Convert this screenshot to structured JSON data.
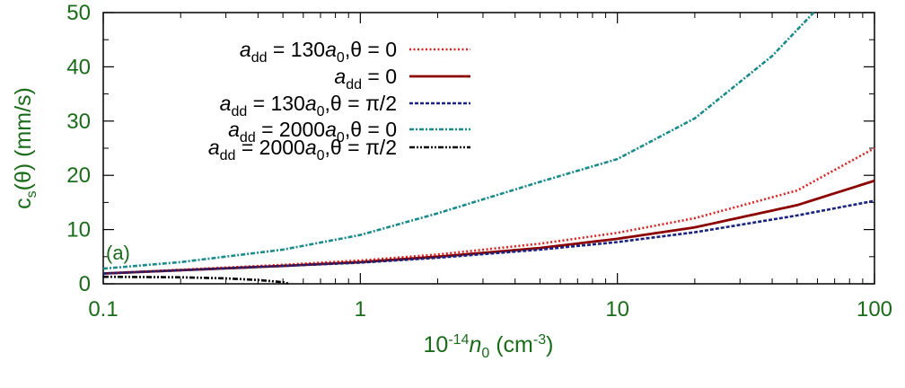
{
  "chart_data": {
    "type": "line",
    "title": "",
    "panel_label": "(a)",
    "xscale": "log",
    "xlim": [
      0.1,
      100
    ],
    "ylim": [
      0,
      50
    ],
    "xticks": [
      0.1,
      1,
      10,
      100
    ],
    "xtick_labels": [
      "0.1",
      "1",
      "10",
      "100"
    ],
    "yticks": [
      0,
      10,
      20,
      30,
      40,
      50
    ],
    "ytick_labels": [
      "0",
      "10",
      "20",
      "30",
      "40",
      "50"
    ],
    "xlabel": {
      "prefix": "10",
      "exp": "-14",
      "var": "n",
      "sub": "0",
      "unit": " (cm",
      "unit_exp": "-3",
      "close": ")"
    },
    "ylabel": {
      "main": "c",
      "sub": "s",
      "rest": "(θ) (mm/s)"
    },
    "axis_color": "#1a6b1a",
    "legend_position": "top-left",
    "series": [
      {
        "name": "a_dd = 130a_0, θ = 0",
        "label_parts": [
          "a",
          "dd",
          " = 130",
          "a",
          "0",
          ",θ = 0"
        ],
        "color": "#dd2222",
        "dash": "dotted",
        "x": [
          0.1,
          0.2,
          0.5,
          1,
          2,
          5,
          10,
          20,
          50,
          100
        ],
        "y": [
          1.9,
          2.6,
          3.5,
          4.3,
          5.4,
          7.4,
          9.4,
          12.1,
          17.2,
          25.0
        ]
      },
      {
        "name": "a_dd = 0",
        "label_parts": [
          "a",
          "dd",
          " = 0",
          "",
          "",
          ""
        ],
        "color": "#8b0000",
        "dash": "solid",
        "x": [
          0.1,
          0.2,
          0.5,
          1,
          2,
          5,
          10,
          20,
          50,
          100
        ],
        "y": [
          1.9,
          2.5,
          3.3,
          4.0,
          5.0,
          6.6,
          8.3,
          10.4,
          14.5,
          19.0
        ]
      },
      {
        "name": "a_dd = 130a_0, θ = π/2",
        "label_parts": [
          "a",
          "dd",
          " = 130",
          "a",
          "0",
          ",θ = π/2"
        ],
        "color": "#1a237e",
        "dash": "dashed",
        "x": [
          0.1,
          0.2,
          0.5,
          1,
          2,
          5,
          10,
          20,
          50,
          100
        ],
        "y": [
          1.9,
          2.5,
          3.3,
          3.9,
          4.8,
          6.3,
          7.7,
          9.5,
          12.6,
          15.3
        ]
      },
      {
        "name": "a_dd = 2000a_0, θ = 0",
        "label_parts": [
          "a",
          "dd",
          " = 2000",
          "a",
          "0",
          ",θ = 0"
        ],
        "color": "#1a8a8a",
        "dash": "dashdot",
        "x": [
          0.1,
          0.2,
          0.5,
          1,
          2,
          5,
          10,
          20,
          40,
          58
        ],
        "y": [
          2.8,
          4.0,
          6.3,
          9.0,
          13.0,
          18.8,
          23.0,
          30.5,
          42.0,
          50.0
        ]
      },
      {
        "name": "a_dd = 2000a_0, θ = π/2",
        "label_parts": [
          "a",
          "dd",
          " = 2000",
          "a",
          "0",
          ",θ = π/2"
        ],
        "color": "#000000",
        "dash": "dashdotdot",
        "x": [
          0.1,
          0.2,
          0.3,
          0.4,
          0.5,
          0.53
        ],
        "y": [
          1.3,
          1.2,
          1.0,
          0.7,
          0.3,
          0.0
        ]
      }
    ]
  }
}
